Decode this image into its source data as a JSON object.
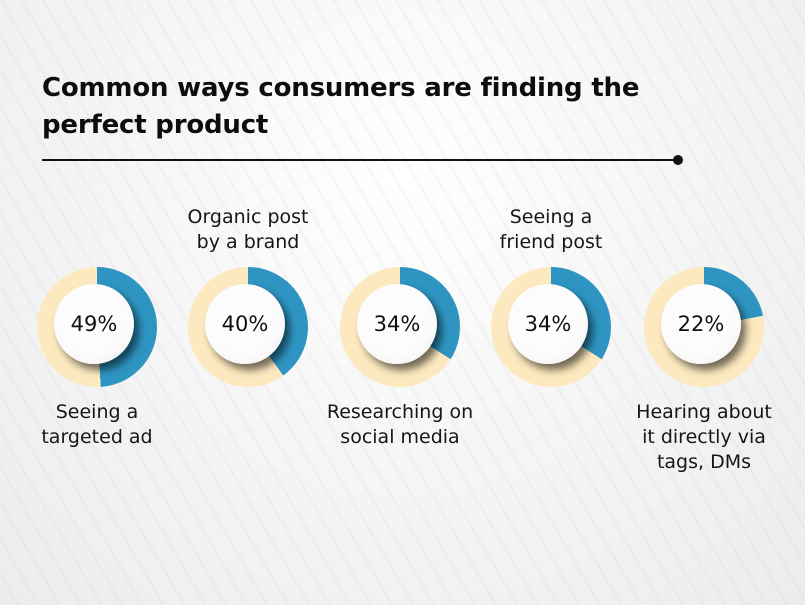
{
  "title": "Common ways consumers are finding the perfect product",
  "colors": {
    "filled": "#2E95C2",
    "remaining": "#FCE9BF",
    "text": "#111111"
  },
  "items": [
    {
      "value": 49,
      "value_label": "49%",
      "label": "Seeing a targeted ad",
      "label_lines": [
        "Seeing a",
        "targeted ad"
      ],
      "label_position": "below"
    },
    {
      "value": 40,
      "value_label": "40%",
      "label": "Organic post by a brand",
      "label_lines": [
        "Organic post",
        "by a brand"
      ],
      "label_position": "above"
    },
    {
      "value": 34,
      "value_label": "34%",
      "label": "Researching on social media",
      "label_lines": [
        "Researching on",
        "social media"
      ],
      "label_position": "below"
    },
    {
      "value": 34,
      "value_label": "34%",
      "label": "Seeing a friend post",
      "label_lines": [
        "Seeing a",
        "friend post"
      ],
      "label_position": "above"
    },
    {
      "value": 22,
      "value_label": "22%",
      "label": "Hearing about it directly via tags, DMs",
      "label_lines": [
        "Hearing about",
        "it directly via",
        "tags, DMs"
      ],
      "label_position": "below"
    }
  ],
  "chart_data": {
    "type": "pie",
    "subtype": "donut-progress",
    "title": "Common ways consumers are finding the perfect product",
    "categories": [
      "Seeing a targeted ad",
      "Organic post by a brand",
      "Researching on social media",
      "Seeing a friend post",
      "Hearing about it directly via tags, DMs"
    ],
    "values": [
      49,
      40,
      34,
      34,
      22
    ],
    "unit": "%",
    "xlabel": "",
    "ylabel": "",
    "legend": "none",
    "grid": false
  }
}
